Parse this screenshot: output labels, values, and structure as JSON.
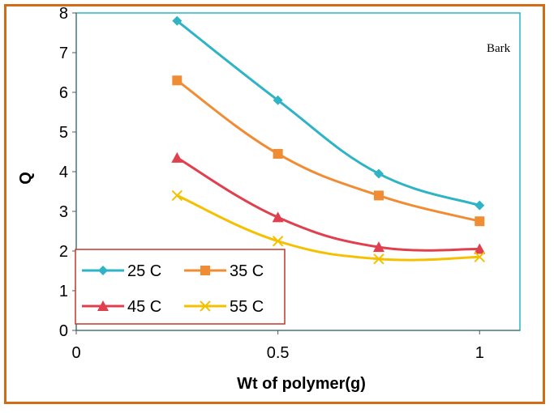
{
  "chart_data": {
    "type": "line",
    "xlabel": "Wt of polymer(g)",
    "ylabel": "Q",
    "xlim": [
      0,
      1.1
    ],
    "ylim": [
      0,
      8
    ],
    "x_ticks": [
      "0",
      "0.5",
      "1"
    ],
    "y_ticks": [
      "0",
      "1",
      "2",
      "3",
      "4",
      "5",
      "6",
      "7",
      "8"
    ],
    "x": [
      0.25,
      0.5,
      0.75,
      1.0
    ],
    "annotation": "Bark",
    "legend_position": "bottom-left",
    "series": [
      {
        "name": "25 C",
        "values": [
          7.8,
          5.8,
          3.95,
          3.15
        ],
        "color": "#2fb3c6",
        "marker": "diamond"
      },
      {
        "name": "35 C",
        "values": [
          6.3,
          4.45,
          3.4,
          2.75
        ],
        "color": "#f08c33",
        "marker": "square"
      },
      {
        "name": "45 C",
        "values": [
          4.35,
          2.85,
          2.1,
          2.05
        ],
        "color": "#e0404e",
        "marker": "triangle"
      },
      {
        "name": "55 C",
        "values": [
          3.4,
          2.25,
          1.8,
          1.85
        ],
        "color": "#f5c000",
        "marker": "x"
      }
    ],
    "grid": false,
    "plot_border_color": "#27b5c4",
    "legend_border_color": "#c0392b"
  }
}
